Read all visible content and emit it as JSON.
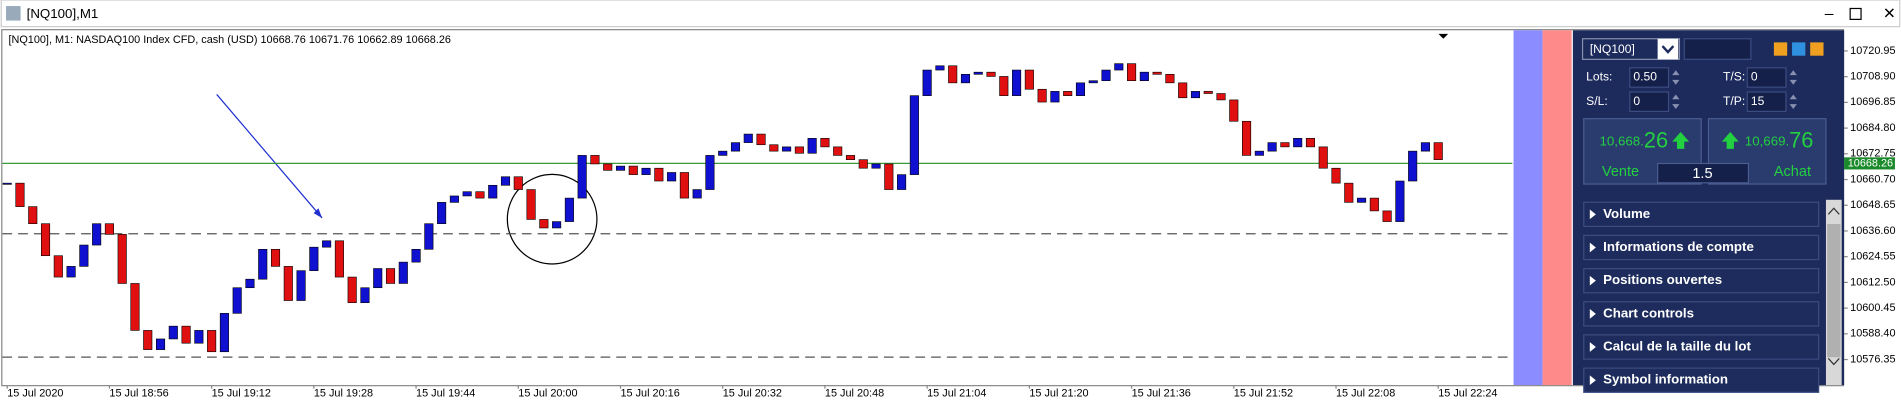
{
  "window": {
    "title": "[NQ100],M1"
  },
  "chart_data": {
    "type": "candlestick",
    "info": "[NQ100], M1:  NASDAQ100 Index CFD, cash (USD)  10668.76 10671.76 10662.89 10668.26",
    "values": [
      10659,
      10648,
      10640,
      10625,
      10615,
      10620,
      10630,
      10640,
      10635,
      10612,
      10590,
      10581,
      10586,
      10592,
      10584,
      10590,
      10580,
      10598,
      10610,
      10614,
      10628,
      10620,
      10604,
      10618,
      10629,
      10632,
      10615,
      10603,
      10610,
      10619,
      10612,
      10622,
      10628,
      10640,
      10650,
      10653,
      10655,
      10652,
      10658,
      10662,
      10656,
      10642,
      10638,
      10641,
      10652,
      10672,
      10668,
      10665,
      10667,
      10663,
      10666,
      10660,
      10664,
      10652,
      10656,
      10672,
      10674,
      10678,
      10682,
      10677,
      10674,
      10676,
      10673,
      10680,
      10676,
      10672,
      10670,
      10666,
      10668,
      10656,
      10663,
      10700,
      10712,
      10714,
      10706,
      10710,
      10711,
      10709,
      10700,
      10712,
      10703,
      10697,
      10702,
      10700,
      10706,
      10707,
      10712,
      10715,
      10707,
      10711,
      10710,
      10706,
      10699,
      10702,
      10701,
      10698,
      10688,
      10672,
      10674,
      10678,
      10676,
      10680,
      10676,
      10666,
      10659,
      10650,
      10652,
      10646,
      10641,
      10660,
      10674,
      10678,
      10670
    ],
    "up_color": "#1010d0",
    "down_color": "#e01010",
    "xlim": [
      -0.47,
      117.8
    ],
    "xticks": [
      {
        "value": 0,
        "label": "15 Jul 2020"
      },
      {
        "value": 8,
        "label": "15 Jul 18:56"
      },
      {
        "value": 16,
        "label": "15 Jul 19:12"
      },
      {
        "value": 24,
        "label": "15 Jul 19:28"
      },
      {
        "value": 32,
        "label": "15 Jul 19:44"
      },
      {
        "value": 40,
        "label": "15 Jul 20:00"
      },
      {
        "value": 48,
        "label": "15 Jul 20:16"
      },
      {
        "value": 56,
        "label": "15 Jul 20:32"
      },
      {
        "value": 64,
        "label": "15 Jul 20:48"
      },
      {
        "value": 72,
        "label": "15 Jul 21:04"
      },
      {
        "value": 80,
        "label": "15 Jul 21:20"
      },
      {
        "value": 88,
        "label": "15 Jul 21:36"
      },
      {
        "value": 96,
        "label": "15 Jul 21:52"
      },
      {
        "value": 104,
        "label": "15 Jul 22:08"
      },
      {
        "value": 112,
        "label": "15 Jul 22:24"
      }
    ],
    "ylim": [
      10564.4,
      10729.5
    ],
    "yticks": [
      {
        "value": 10720.95,
        "label": "10720.95"
      },
      {
        "value": 10708.9,
        "label": "10708.90"
      },
      {
        "value": 10696.85,
        "label": "10696.85"
      },
      {
        "value": 10684.8,
        "label": "10684.80"
      },
      {
        "value": 10672.75,
        "label": "10672.75"
      },
      {
        "value": 10660.7,
        "label": "10660.70"
      },
      {
        "value": 10648.65,
        "label": "10648.65"
      },
      {
        "value": 10636.6,
        "label": "10636.60"
      },
      {
        "value": 10624.55,
        "label": "10624.55"
      },
      {
        "value": 10612.5,
        "label": "10612.50"
      },
      {
        "value": 10600.45,
        "label": "10600.45"
      },
      {
        "value": 10588.4,
        "label": "10588.40"
      },
      {
        "value": 10576.35,
        "label": "10576.35"
      }
    ],
    "current_price": 10668.26,
    "levels": [
      10635.3,
      10577.5
    ]
  },
  "panel": {
    "symbol": "[NQ100]",
    "lots_label": "Lots:",
    "lots": "0.50",
    "ts_label": "T/S:",
    "ts": "0",
    "sl_label": "S/L:",
    "sl": "0",
    "tp_label": "T/P:",
    "tp": "15",
    "sell": {
      "price_main": "10,668.",
      "price_big": "26",
      "label": "Vente"
    },
    "spread": "1.5",
    "buy": {
      "price_main": "10,669.",
      "price_big": "76",
      "label": "Achat"
    },
    "sections": [
      "Volume",
      "Informations de compte",
      "Positions ouvertes",
      "Chart controls",
      "Calcul de la taille du lot",
      "Symbol information"
    ]
  }
}
